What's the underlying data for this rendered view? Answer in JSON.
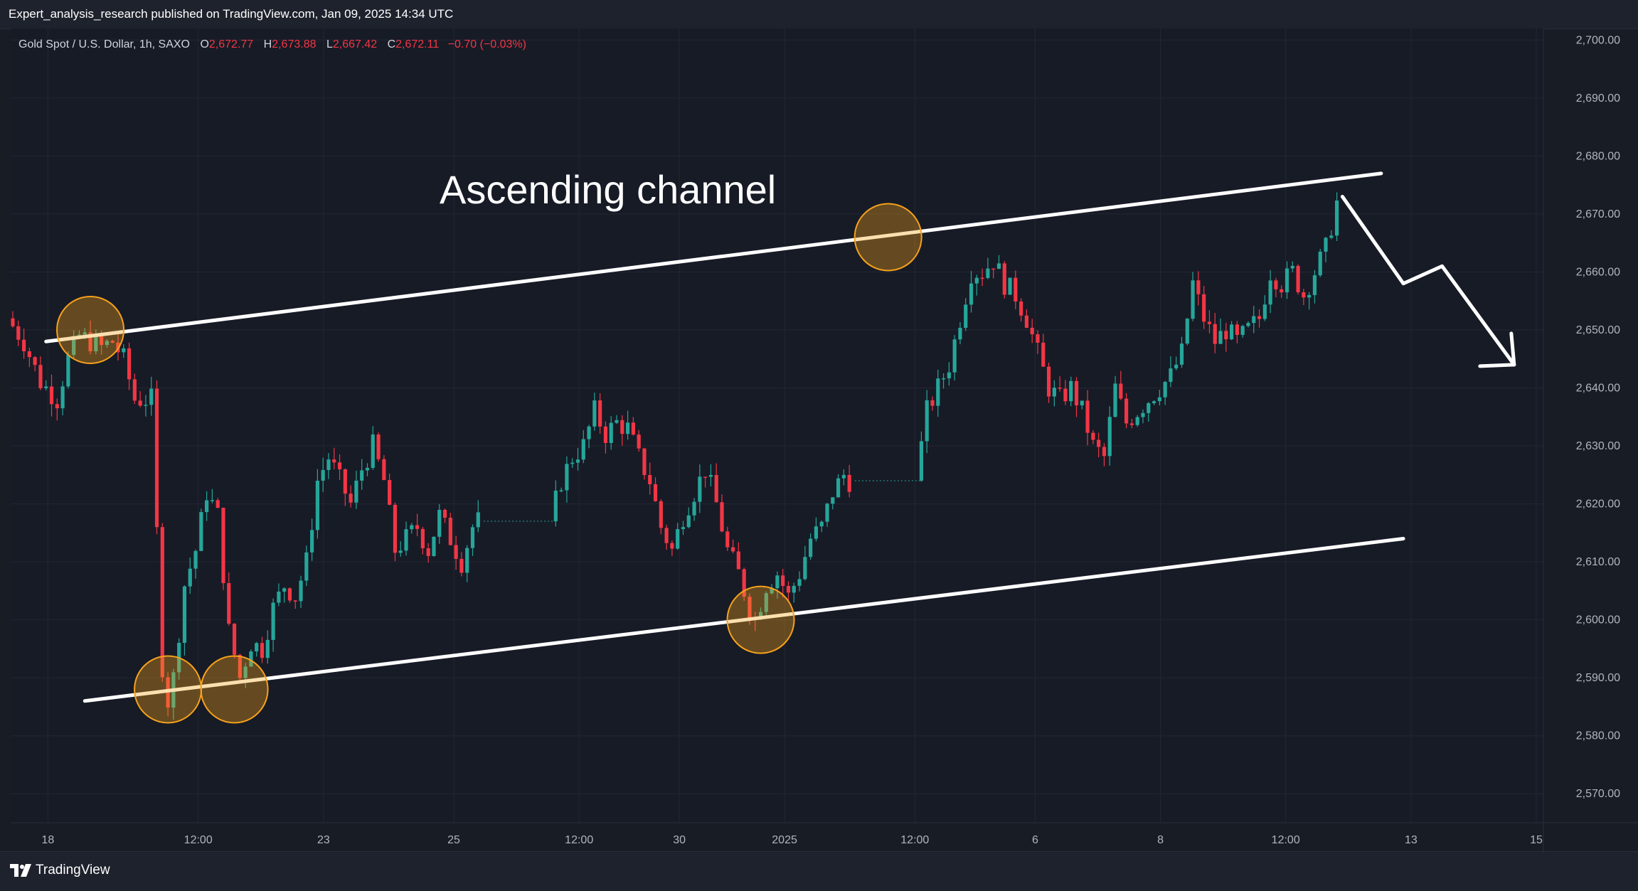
{
  "header": {
    "published": "Expert_analysis_research published on TradingView.com, Jan 09, 2025 14:34 UTC"
  },
  "legend": {
    "symbol": "Gold Spot / U.S. Dollar, 1h, SAXO",
    "open_label": "O",
    "open": "2,672.77",
    "high_label": "H",
    "high": "2,673.88",
    "low_label": "L",
    "low": "2,667.42",
    "close_label": "C",
    "close": "2,672.11",
    "change": "−0.70 (−0.03%)"
  },
  "footer": {
    "brand": "TradingView",
    "logo_icon": "tradingview-logo-icon"
  },
  "colors": {
    "up": "#26a69a",
    "down": "#f23645",
    "grid": "#232734",
    "line": "#ffffff",
    "circle": "#f7a21b"
  },
  "chart_data": {
    "type": "candlestick",
    "annotation": "Ascending channel",
    "ylim": [
      2565,
      2702
    ],
    "y_ticks": [
      "2,700.00",
      "2,690.00",
      "2,680.00",
      "2,670.00",
      "2,660.00",
      "2,650.00",
      "2,640.00",
      "2,630.00",
      "2,620.00",
      "2,610.00",
      "2,600.00",
      "2,590.00",
      "2,580.00",
      "2,570.00"
    ],
    "x_ticks": [
      "18",
      "12:00",
      "23",
      "25",
      "12:00",
      "30",
      "2025",
      "12:00",
      "6",
      "8",
      "12:00",
      "13",
      "15"
    ],
    "path": [
      [
        0,
        2652
      ],
      [
        3,
        2648
      ],
      [
        6,
        2641
      ],
      [
        9,
        2638
      ],
      [
        11,
        2645
      ],
      [
        13,
        2649
      ],
      [
        15,
        2648
      ],
      [
        17,
        2647
      ],
      [
        19,
        2648
      ],
      [
        21,
        2645
      ],
      [
        23,
        2638
      ],
      [
        26,
        2638
      ],
      [
        28,
        2592
      ],
      [
        29,
        2586
      ],
      [
        30,
        2590
      ],
      [
        32,
        2606
      ],
      [
        34,
        2612
      ],
      [
        36,
        2622
      ],
      [
        38,
        2618
      ],
      [
        40,
        2598
      ],
      [
        42,
        2590
      ],
      [
        44,
        2596
      ],
      [
        46,
        2595
      ],
      [
        48,
        2602
      ],
      [
        50,
        2606
      ],
      [
        52,
        2604
      ],
      [
        54,
        2610
      ],
      [
        56,
        2624
      ],
      [
        58,
        2628
      ],
      [
        60,
        2624
      ],
      [
        62,
        2620
      ],
      [
        64,
        2626
      ],
      [
        66,
        2630
      ],
      [
        68,
        2624
      ],
      [
        70,
        2612
      ],
      [
        72,
        2614
      ],
      [
        74,
        2616
      ],
      [
        76,
        2612
      ],
      [
        78,
        2618
      ],
      [
        80,
        2614
      ],
      [
        82,
        2610
      ],
      [
        84,
        2616
      ],
      [
        85,
        2617
      ],
      [
        98,
        2617
      ],
      [
        100,
        2624
      ],
      [
        102,
        2628
      ],
      [
        104,
        2630
      ],
      [
        106,
        2636
      ],
      [
        108,
        2632
      ],
      [
        110,
        2634
      ],
      [
        112,
        2633
      ],
      [
        114,
        2628
      ],
      [
        116,
        2624
      ],
      [
        118,
        2616
      ],
      [
        120,
        2612
      ],
      [
        122,
        2618
      ],
      [
        124,
        2622
      ],
      [
        126,
        2626
      ],
      [
        128,
        2620
      ],
      [
        130,
        2612
      ],
      [
        132,
        2608
      ],
      [
        134,
        2602
      ],
      [
        135,
        2600
      ],
      [
        137,
        2606
      ],
      [
        139,
        2608
      ],
      [
        141,
        2604
      ],
      [
        143,
        2608
      ],
      [
        145,
        2614
      ],
      [
        147,
        2616
      ],
      [
        149,
        2622
      ],
      [
        151,
        2625
      ],
      [
        152,
        2624
      ],
      [
        164,
        2624
      ],
      [
        166,
        2636
      ],
      [
        168,
        2640
      ],
      [
        170,
        2644
      ],
      [
        172,
        2652
      ],
      [
        174,
        2660
      ],
      [
        176,
        2660
      ],
      [
        178,
        2662
      ],
      [
        180,
        2658
      ],
      [
        182,
        2656
      ],
      [
        184,
        2652
      ],
      [
        186,
        2646
      ],
      [
        188,
        2640
      ],
      [
        190,
        2638
      ],
      [
        192,
        2640
      ],
      [
        194,
        2636
      ],
      [
        196,
        2630
      ],
      [
        198,
        2628
      ],
      [
        200,
        2640
      ],
      [
        202,
        2634
      ],
      [
        204,
        2636
      ],
      [
        206,
        2638
      ],
      [
        208,
        2640
      ],
      [
        210,
        2642
      ],
      [
        212,
        2646
      ],
      [
        214,
        2658
      ],
      [
        216,
        2652
      ],
      [
        218,
        2648
      ],
      [
        220,
        2650
      ],
      [
        222,
        2648
      ],
      [
        224,
        2650
      ],
      [
        226,
        2652
      ],
      [
        228,
        2660
      ],
      [
        230,
        2658
      ],
      [
        232,
        2660
      ],
      [
        234,
        2656
      ],
      [
        236,
        2660
      ],
      [
        238,
        2664
      ],
      [
        240,
        2672
      ]
    ],
    "channel": {
      "upper": [
        [
          6,
          2648
        ],
        [
          247,
          2677
        ]
      ],
      "lower": [
        [
          13,
          2586
        ],
        [
          251,
          2614
        ]
      ]
    },
    "touch_points": [
      [
        14,
        2650
      ],
      [
        28,
        2588
      ],
      [
        40,
        2588
      ],
      [
        158,
        2666
      ],
      [
        135,
        2600
      ]
    ],
    "projection": [
      [
        240,
        2673
      ],
      [
        251,
        2658
      ],
      [
        258,
        2661
      ],
      [
        271,
        2644
      ]
    ]
  }
}
